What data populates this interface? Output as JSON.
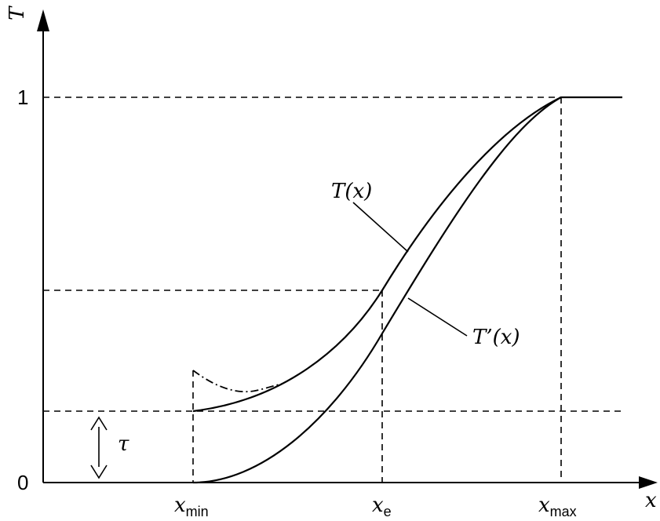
{
  "axes": {
    "x_label": "x",
    "y_label": "T",
    "y_tick_zero": "0",
    "y_tick_one": "1"
  },
  "x_ticks": [
    {
      "base": "x",
      "sub": "min"
    },
    {
      "base": "x",
      "sub": "e"
    },
    {
      "base": "x",
      "sub": "max"
    }
  ],
  "curve_labels": {
    "T": "T(x)",
    "T_prime": "T’(x)"
  },
  "tau_label": "τ"
}
